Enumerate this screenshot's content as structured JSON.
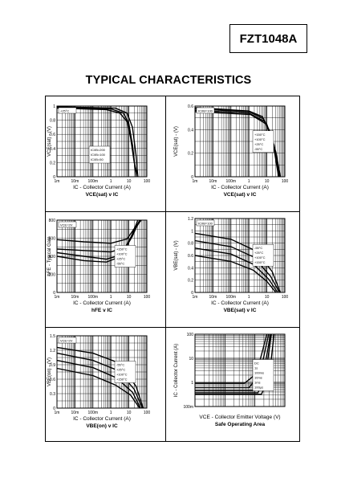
{
  "header": {
    "part_number": "FZT1048A"
  },
  "page_title": "TYPICAL CHARACTERISTICS",
  "charts": [
    {
      "id": "c1",
      "caption": "VCE(sat) v IC",
      "xlabel": "IC - Collector Current (A)",
      "ylabel": "VCE(sat) - (V)",
      "xticks": [
        "1m",
        "10m",
        "100m",
        "1",
        "10",
        "100"
      ],
      "yticks": [
        "0",
        "0.2",
        "0.4",
        "0.6",
        "0.8",
        "1"
      ],
      "annotation": "+25°C",
      "legend": [
        "IC/IB=200",
        "IC/IB=100",
        "IC/IB=50"
      ]
    },
    {
      "id": "c2",
      "caption": "VCE(sat) v IC",
      "xlabel": "IC - Collector Current (A)",
      "ylabel": "VCE(sat) - (V)",
      "xticks": [
        "1m",
        "10m",
        "100m",
        "1",
        "10",
        "100"
      ],
      "yticks": [
        "0",
        "0.2",
        "0.4",
        "0.6"
      ],
      "annotation": "IC/IB=100",
      "legend": [
        "+150°C",
        "+100°C",
        "+25°C",
        "-55°C"
      ]
    },
    {
      "id": "c3",
      "caption": "hFE v IC",
      "xlabel": "IC - Collector Current (A)",
      "ylabel": "hFE - Typical Gain",
      "xticks": [
        "1m",
        "10m",
        "100m",
        "1",
        "10",
        "100"
      ],
      "yticks": [
        "0",
        "200",
        "400",
        "600",
        "800"
      ],
      "annotation": "VCE=2V",
      "legend": [
        "+150°C",
        "+100°C",
        "+25°C",
        "-55°C"
      ]
    },
    {
      "id": "c4",
      "caption": "VBE(sat) v IC",
      "xlabel": "IC - Collector Current (A)",
      "ylabel": "VBE(sat) - (V)",
      "xticks": [
        "1m",
        "10m",
        "100m",
        "1",
        "10",
        "100"
      ],
      "yticks": [
        "0",
        "0.2",
        "0.4",
        "0.6",
        "0.8",
        "1",
        "1.2"
      ],
      "annotation": "IC/IB=100",
      "legend": [
        "-55°C",
        "+25°C",
        "+100°C",
        "+150°C"
      ]
    },
    {
      "id": "c5",
      "caption": "VBE(on) v IC",
      "xlabel": "IC - Collector Current (A)",
      "ylabel": "VBE(on) - (V)",
      "xticks": [
        "1m",
        "10m",
        "100m",
        "1",
        "10",
        "100"
      ],
      "yticks": [
        "0",
        "0.3",
        "0.6",
        "0.9",
        "1.2",
        "1.5"
      ],
      "annotation": "VCE=2V",
      "legend": [
        "-55°C",
        "+25°C",
        "+100°C",
        "+150°C"
      ]
    },
    {
      "id": "c6",
      "caption": "Safe Operating Area",
      "xlabel": "VCE - Collector Emitter Voltage (V)",
      "ylabel": "IC - Collector Current (A)",
      "xticks": [
        "",
        "",
        "",
        ""
      ],
      "yticks": [
        "100m",
        "1",
        "10",
        "100"
      ],
      "annotation": "",
      "legend": [
        "DC",
        "1s",
        "100ms",
        "10ms",
        "1ms",
        "100µs"
      ]
    }
  ]
}
